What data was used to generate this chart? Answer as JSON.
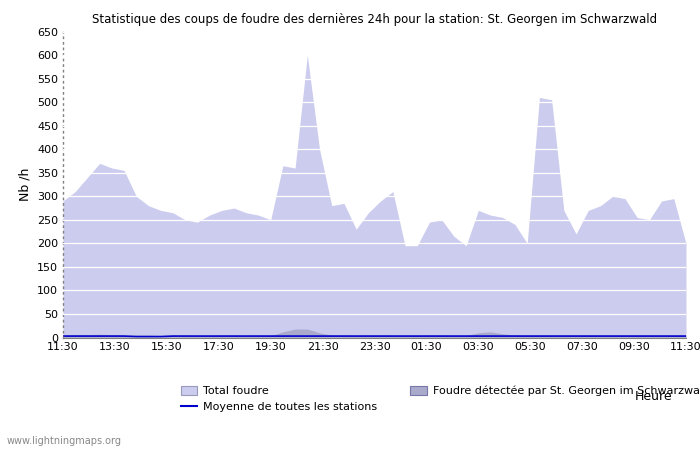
{
  "title": "Statistique des coups de foudre des dernières 24h pour la station: St. Georgen im Schwarzwald",
  "ylabel": "Nb /h",
  "xlabel": "Heure",
  "ylim": [
    0,
    650
  ],
  "yticks": [
    0,
    50,
    100,
    150,
    200,
    250,
    300,
    350,
    400,
    450,
    500,
    550,
    600,
    650
  ],
  "x_labels": [
    "11:30",
    "13:30",
    "15:30",
    "17:30",
    "19:30",
    "21:30",
    "23:30",
    "01:30",
    "03:30",
    "05:30",
    "07:30",
    "09:30",
    "11:30"
  ],
  "bg_color": "#ffffff",
  "fill_total_color": "#ccccee",
  "fill_detected_color": "#aaaacc",
  "mean_line_color": "#0000cc",
  "watermark": "www.lightningmaps.org",
  "total_foudre": [
    290,
    310,
    340,
    370,
    360,
    355,
    300,
    280,
    270,
    265,
    250,
    245,
    260,
    270,
    275,
    265,
    260,
    250,
    365,
    360,
    600,
    400,
    280,
    285,
    230,
    265,
    290,
    310,
    195,
    195,
    245,
    250,
    215,
    195,
    270,
    260,
    255,
    240,
    200,
    510,
    505,
    270,
    220,
    270,
    280,
    300,
    295,
    255,
    250,
    290,
    295,
    200
  ],
  "foudre_detected": [
    5,
    6,
    6,
    7,
    6,
    5,
    5,
    5,
    4,
    5,
    5,
    4,
    4,
    5,
    5,
    4,
    5,
    4,
    12,
    18,
    18,
    10,
    5,
    5,
    4,
    5,
    5,
    4,
    4,
    4,
    5,
    5,
    4,
    4,
    10,
    12,
    8,
    5,
    5,
    5,
    5,
    5,
    5,
    5,
    5,
    5,
    5,
    5,
    5,
    5,
    5,
    5
  ],
  "mean_line": [
    3,
    3,
    3,
    3,
    3,
    3,
    2,
    2,
    2,
    3,
    3,
    3,
    3,
    3,
    3,
    3,
    3,
    3,
    3,
    3,
    3,
    3,
    3,
    3,
    3,
    3,
    3,
    3,
    3,
    3,
    3,
    3,
    3,
    3,
    3,
    3,
    3,
    3,
    3,
    3,
    3,
    3,
    3,
    3,
    3,
    3,
    3,
    3,
    3,
    3,
    3,
    3
  ]
}
